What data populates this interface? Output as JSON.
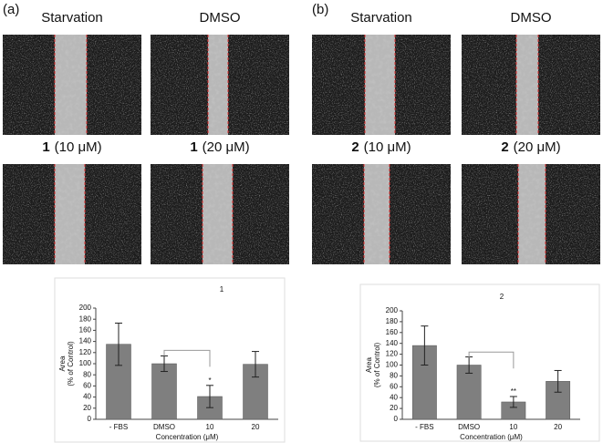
{
  "panels": [
    {
      "label": "(a)",
      "images": [
        {
          "title": "Starvation"
        },
        {
          "title": "DMSO"
        },
        {
          "compound": "1",
          "title": "(10 μM)"
        },
        {
          "compound": "1",
          "title": "(20 μM)"
        }
      ]
    },
    {
      "label": "(b)",
      "images": [
        {
          "title": "Starvation"
        },
        {
          "title": "DMSO"
        },
        {
          "compound": "2",
          "title": "(10 μM)"
        },
        {
          "compound": "2",
          "title": "(20 μM)"
        }
      ]
    }
  ],
  "chart_data": [
    {
      "type": "bar",
      "title": "1",
      "categories": [
        "- FBS",
        "DMSO",
        "10",
        "20"
      ],
      "values": [
        135,
        100,
        41,
        99
      ],
      "errors": [
        38,
        14,
        20,
        23
      ],
      "color": "#7f7f7f",
      "annotations": [
        null,
        null,
        "*",
        null
      ],
      "xlabel": "Concentration (μM)",
      "ylabel": [
        "Area",
        "(% of Control)"
      ],
      "ylim": [
        0,
        200
      ],
      "yticks": [
        0,
        20,
        40,
        60,
        80,
        100,
        120,
        140,
        160,
        180,
        200
      ]
    },
    {
      "type": "bar",
      "title": "2",
      "categories": [
        "- FBS",
        "DMSO",
        "10",
        "20"
      ],
      "values": [
        136,
        100,
        32,
        70
      ],
      "errors": [
        36,
        15,
        10,
        20
      ],
      "color": "#7f7f7f",
      "annotations": [
        null,
        null,
        "**",
        null
      ],
      "xlabel": "Concentration (μM)",
      "ylabel": [
        "Area",
        "(% of Control)"
      ],
      "ylim": [
        0,
        200
      ],
      "yticks": [
        0,
        20,
        40,
        60,
        80,
        100,
        120,
        140,
        160,
        180,
        200
      ]
    }
  ]
}
